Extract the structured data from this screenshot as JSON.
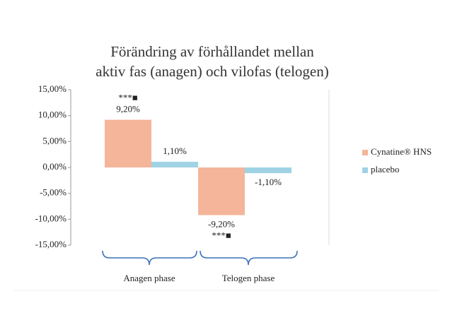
{
  "chart_data": {
    "type": "bar",
    "title": [
      "Förändring av förhållandet mellan",
      "aktiv fas (anagen) och vilofas (telogen)"
    ],
    "categories": [
      "Anagen phase",
      "Telogen phase"
    ],
    "series": [
      {
        "name": "Cynatine® HNS",
        "color": "#f4b59a",
        "values": [
          9.2,
          -9.2
        ],
        "value_labels": [
          "9,20%",
          "-9,20%"
        ]
      },
      {
        "name": "placebo",
        "color": "#9fd3e4",
        "values": [
          1.1,
          -1.1
        ],
        "value_labels": [
          "1,10%",
          "-1,10%"
        ]
      }
    ],
    "annotations": [
      "***■",
      "***■"
    ],
    "ylim": [
      -15,
      15
    ],
    "yticks": [
      {
        "value": 15,
        "label": "15,00%"
      },
      {
        "value": 10,
        "label": "10,00%"
      },
      {
        "value": 5,
        "label": "5,00%"
      },
      {
        "value": 0,
        "label": "0,00%"
      },
      {
        "value": -5,
        "label": "-5,00%"
      },
      {
        "value": -10,
        "label": "-10,00%"
      },
      {
        "value": -15,
        "label": "-15,00%"
      }
    ],
    "legend": "right",
    "grid": false
  }
}
